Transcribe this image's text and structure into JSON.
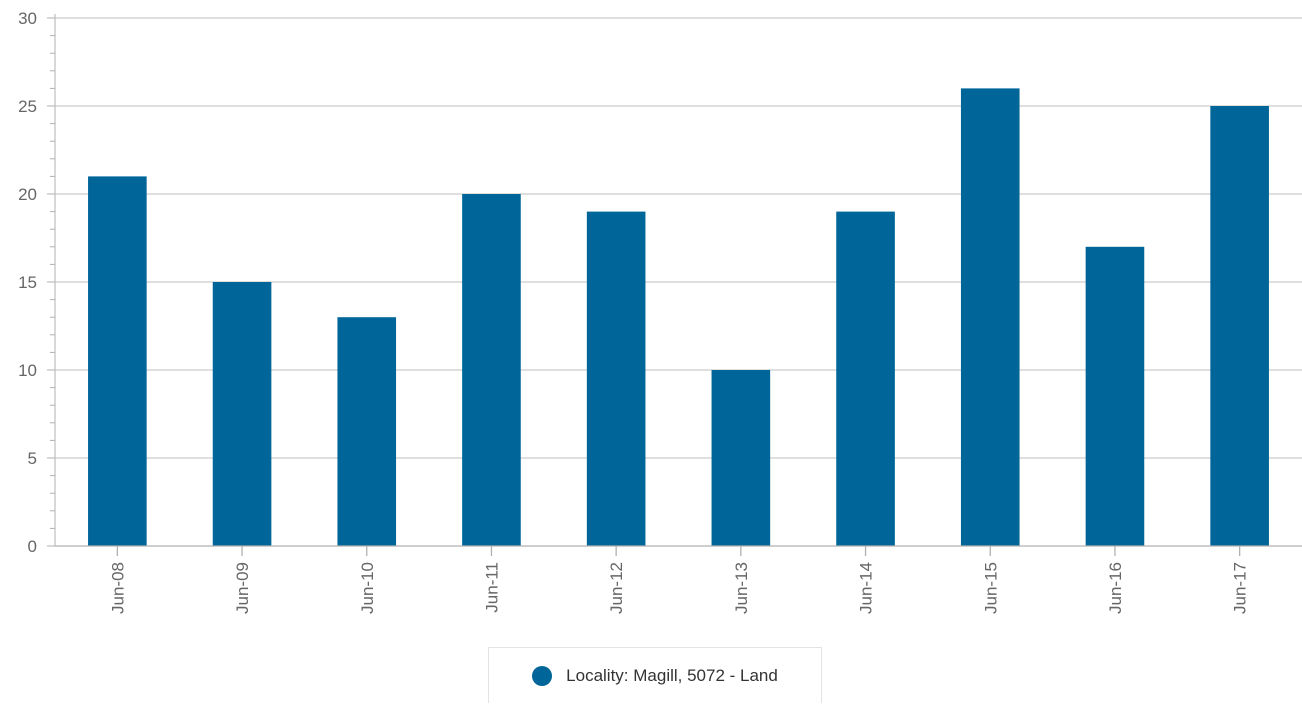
{
  "chart_data": {
    "type": "bar",
    "categories": [
      "Jun-08",
      "Jun-09",
      "Jun-10",
      "Jun-11",
      "Jun-12",
      "Jun-13",
      "Jun-14",
      "Jun-15",
      "Jun-16",
      "Jun-17"
    ],
    "series": [
      {
        "name": "Locality: Magill, 5072 - Land",
        "values": [
          21,
          15,
          13,
          20,
          19,
          10,
          19,
          26,
          17,
          25
        ],
        "color": "#006699"
      }
    ],
    "ylim": [
      0,
      30
    ],
    "yticks": [
      0,
      5,
      10,
      15,
      20,
      25,
      30
    ],
    "grid": true,
    "legend_position": "bottom-center",
    "xtick_rotation": "vertical",
    "title": "",
    "xlabel": "",
    "ylabel": ""
  },
  "colors": {
    "grid": "#cccccc",
    "axis": "#b0b0b0",
    "tick_text": "#666666",
    "bar": "#006699"
  }
}
